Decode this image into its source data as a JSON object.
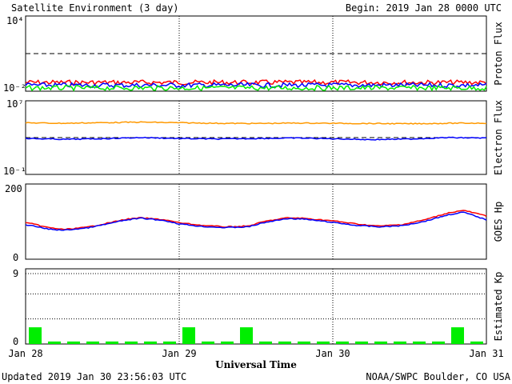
{
  "header": {
    "title": "Satellite Environment (3 day)",
    "begin": "Begin:  2019 Jan 28 0000 UTC"
  },
  "footer": {
    "updated": "Updated 2019 Jan 30 23:56:03 UTC",
    "credit": "NOAA/SWPC Boulder, CO USA"
  },
  "x_axis": {
    "title": "Universal Time",
    "ticks": [
      "Jan 28",
      "Jan 29",
      "Jan 30",
      "Jan 31"
    ]
  },
  "colors": {
    "red": "#ff0000",
    "blue": "#0000ff",
    "green": "#00ee00",
    "orange": "#ff9900",
    "frame": "#000000"
  },
  "chart_data": [
    {
      "type": "line",
      "name": "proton-flux",
      "ylabel": "Proton Flux",
      "yscale": "log",
      "ylim": [
        0.01,
        10000
      ],
      "y_tick_labels": [
        "10⁴",
        "10⁻²"
      ],
      "reference_line": 10,
      "x": [
        0,
        0.5,
        1,
        1.5,
        2,
        2.5,
        3
      ],
      "series": [
        {
          "color": "#ff0000",
          "values": [
            0.05,
            0.05,
            0.05,
            0.05,
            0.05,
            0.05,
            0.05
          ]
        },
        {
          "color": "#0000ff",
          "values": [
            0.03,
            0.03,
            0.03,
            0.03,
            0.03,
            0.03,
            0.03
          ]
        },
        {
          "color": "#00ee00",
          "values": [
            0.018,
            0.018,
            0.018,
            0.018,
            0.018,
            0.018,
            0.018
          ]
        }
      ]
    },
    {
      "type": "line",
      "name": "electron-flux",
      "ylabel": "Electron Flux",
      "yscale": "log",
      "ylim": [
        0.1,
        10000000
      ],
      "y_tick_labels": [
        "10⁷",
        "10⁻¹"
      ],
      "reference_line": 1000,
      "x": [
        0,
        0.25,
        0.5,
        0.75,
        1,
        1.25,
        1.5,
        1.75,
        2,
        2.25,
        2.5,
        2.75,
        3
      ],
      "series": [
        {
          "color": "#ff9900",
          "values": [
            40000,
            36000,
            42000,
            48000,
            41000,
            36000,
            34000,
            38000,
            36000,
            34000,
            32000,
            36000,
            38000
          ]
        },
        {
          "color": "#0000ff",
          "values": [
            800,
            650,
            750,
            1000,
            800,
            700,
            800,
            900,
            750,
            600,
            700,
            1000,
            900
          ]
        }
      ]
    },
    {
      "type": "line",
      "name": "goes-hp",
      "ylabel": "GOES Hp",
      "ylim": [
        0,
        200
      ],
      "y_tick_labels": [
        "200",
        "0"
      ],
      "x": [
        0,
        0.15,
        0.25,
        0.4,
        0.5,
        0.65,
        0.75,
        0.9,
        1.0,
        1.15,
        1.3,
        1.45,
        1.55,
        1.7,
        1.8,
        2.0,
        2.15,
        2.3,
        2.45,
        2.6,
        2.75,
        2.85,
        3.0
      ],
      "series": [
        {
          "color": "#ff0000",
          "values": [
            98,
            84,
            79,
            85,
            93,
            106,
            110,
            105,
            97,
            90,
            86,
            88,
            100,
            110,
            109,
            102,
            94,
            88,
            92,
            105,
            123,
            130,
            115
          ]
        },
        {
          "color": "#0000ff",
          "values": [
            92,
            80,
            77,
            83,
            91,
            104,
            109,
            103,
            94,
            87,
            84,
            86,
            97,
            108,
            107,
            98,
            90,
            86,
            89,
            101,
            118,
            125,
            105
          ]
        }
      ]
    },
    {
      "type": "bar",
      "name": "estimated-kp",
      "ylabel": "Estimated Kp",
      "ylim": [
        0,
        9
      ],
      "y_tick_labels": [
        "9",
        "0"
      ],
      "bin_hours": 3,
      "values": [
        2,
        0.3,
        0.3,
        0.3,
        0.3,
        0.3,
        0.3,
        0.3,
        2,
        0.3,
        0.3,
        2,
        0.3,
        0.3,
        0.3,
        0.3,
        0.3,
        0.3,
        0.3,
        0.3,
        0.3,
        0.3,
        2,
        0.3
      ]
    }
  ]
}
